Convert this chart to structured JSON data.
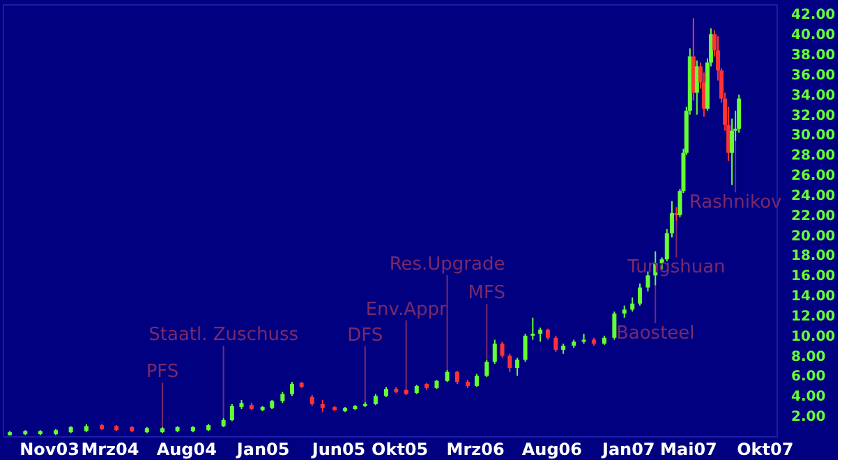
{
  "chart_data": {
    "type": "candlestick",
    "x": [
      "2003-08-15",
      "2003-09-15",
      "2003-10-15",
      "2003-11-15",
      "2003-12-15",
      "2004-01-15",
      "2004-02-15",
      "2004-03-15",
      "2004-04-15",
      "2004-05-15",
      "2004-06-15",
      "2004-07-15",
      "2004-08-15",
      "2004-09-15",
      "2004-10-15",
      "2004-11-01",
      "2004-11-20",
      "2004-12-10",
      "2005-01-01",
      "2005-01-20",
      "2005-02-10",
      "2005-03-01",
      "2005-03-20",
      "2005-04-10",
      "2005-05-01",
      "2005-05-25",
      "2005-06-15",
      "2005-07-05",
      "2005-07-25",
      "2005-08-15",
      "2005-09-05",
      "2005-09-25",
      "2005-10-15",
      "2005-11-05",
      "2005-11-25",
      "2005-12-15",
      "2006-01-05",
      "2006-01-25",
      "2006-02-15",
      "2006-03-05",
      "2006-03-25",
      "2006-04-10",
      "2006-04-25",
      "2006-05-10",
      "2006-05-25",
      "2006-06-10",
      "2006-06-25",
      "2006-07-10",
      "2006-07-25",
      "2006-08-10",
      "2006-08-25",
      "2006-09-15",
      "2006-10-05",
      "2006-10-25",
      "2006-11-15",
      "2006-12-05",
      "2006-12-25",
      "2007-01-10",
      "2007-01-25",
      "2007-02-10",
      "2007-02-25",
      "2007-03-10",
      "2007-03-20",
      "2007-03-30",
      "2007-04-08",
      "2007-04-15",
      "2007-04-22",
      "2007-04-28",
      "2007-05-05",
      "2007-05-12",
      "2007-05-19",
      "2007-05-26",
      "2007-06-02",
      "2007-06-09",
      "2007-06-16",
      "2007-06-23",
      "2007-06-30",
      "2007-07-07",
      "2007-07-14",
      "2007-07-21",
      "2007-07-28",
      "2007-08-04",
      "2007-08-11"
    ],
    "ohlc": [
      [
        0.1,
        0.5,
        0.05,
        0.4
      ],
      [
        0.2,
        0.6,
        0.1,
        0.5
      ],
      [
        0.2,
        0.6,
        0.1,
        0.5
      ],
      [
        0.2,
        0.7,
        0.1,
        0.6
      ],
      [
        0.4,
        1.0,
        0.3,
        0.9
      ],
      [
        0.5,
        1.2,
        0.4,
        1.0
      ],
      [
        1.1,
        1.2,
        0.6,
        0.7
      ],
      [
        1.0,
        1.1,
        0.5,
        0.6
      ],
      [
        0.9,
        1.0,
        0.4,
        0.5
      ],
      [
        0.4,
        0.9,
        0.3,
        0.8
      ],
      [
        0.4,
        0.9,
        0.3,
        0.8
      ],
      [
        0.5,
        1.0,
        0.4,
        0.9
      ],
      [
        0.5,
        1.0,
        0.4,
        0.9
      ],
      [
        0.6,
        1.2,
        0.5,
        1.1
      ],
      [
        1.0,
        1.8,
        0.9,
        1.6
      ],
      [
        1.6,
        3.2,
        1.5,
        3.0
      ],
      [
        2.9,
        3.6,
        2.7,
        3.3
      ],
      [
        3.1,
        3.3,
        2.6,
        2.7
      ],
      [
        2.6,
        3.0,
        2.5,
        2.9
      ],
      [
        2.8,
        3.6,
        2.7,
        3.5
      ],
      [
        3.5,
        4.4,
        3.3,
        4.2
      ],
      [
        4.2,
        5.4,
        4.0,
        5.2
      ],
      [
        5.3,
        5.4,
        4.8,
        4.9
      ],
      [
        3.9,
        4.1,
        3.0,
        3.2
      ],
      [
        3.2,
        3.6,
        2.4,
        2.8
      ],
      [
        2.9,
        3.0,
        2.5,
        2.6
      ],
      [
        2.5,
        2.9,
        2.4,
        2.8
      ],
      [
        2.7,
        3.1,
        2.6,
        3.0
      ],
      [
        3.0,
        3.4,
        2.9,
        3.2
      ],
      [
        3.2,
        4.2,
        3.1,
        4.0
      ],
      [
        4.0,
        4.9,
        3.9,
        4.7
      ],
      [
        4.7,
        4.9,
        4.3,
        4.4
      ],
      [
        4.6,
        4.7,
        4.1,
        4.2
      ],
      [
        4.3,
        5.1,
        4.2,
        5.0
      ],
      [
        5.2,
        5.3,
        4.6,
        4.8
      ],
      [
        4.8,
        5.6,
        4.7,
        5.5
      ],
      [
        5.5,
        6.6,
        5.4,
        6.4
      ],
      [
        6.4,
        6.5,
        5.2,
        5.4
      ],
      [
        5.4,
        5.6,
        4.8,
        5.0
      ],
      [
        5.0,
        6.2,
        4.9,
        6.0
      ],
      [
        6.0,
        7.6,
        5.9,
        7.4
      ],
      [
        7.4,
        9.6,
        7.2,
        9.2
      ],
      [
        9.2,
        9.4,
        7.8,
        8.0
      ],
      [
        8.0,
        8.2,
        6.4,
        6.8
      ],
      [
        6.8,
        7.8,
        6.0,
        7.6
      ],
      [
        7.6,
        10.2,
        7.4,
        10.0
      ],
      [
        10.0,
        11.8,
        9.6,
        10.2
      ],
      [
        10.2,
        10.8,
        9.4,
        10.6
      ],
      [
        10.6,
        10.7,
        9.6,
        9.8
      ],
      [
        9.8,
        10.0,
        8.4,
        8.6
      ],
      [
        8.6,
        9.2,
        8.2,
        9.0
      ],
      [
        9.0,
        9.6,
        8.8,
        9.4
      ],
      [
        9.4,
        10.2,
        9.2,
        9.6
      ],
      [
        9.6,
        9.8,
        9.0,
        9.2
      ],
      [
        9.2,
        10.0,
        9.1,
        9.8
      ],
      [
        9.8,
        12.4,
        9.6,
        12.2
      ],
      [
        12.2,
        13.0,
        11.8,
        12.6
      ],
      [
        12.6,
        13.8,
        12.4,
        13.2
      ],
      [
        13.2,
        15.2,
        13.0,
        14.8
      ],
      [
        14.8,
        16.4,
        14.4,
        16.0
      ],
      [
        16.0,
        18.4,
        15.0,
        17.2
      ],
      [
        17.2,
        17.8,
        16.6,
        17.6
      ],
      [
        17.6,
        20.6,
        17.4,
        20.2
      ],
      [
        20.2,
        23.4,
        19.8,
        22.2
      ],
      [
        22.2,
        22.8,
        21.4,
        22.0
      ],
      [
        22.0,
        24.6,
        21.8,
        24.4
      ],
      [
        24.4,
        28.6,
        24.2,
        28.2
      ],
      [
        28.2,
        32.8,
        28.0,
        32.4
      ],
      [
        32.4,
        38.6,
        32.0,
        37.8
      ],
      [
        37.8,
        41.6,
        33.4,
        34.2
      ],
      [
        34.2,
        37.4,
        32.0,
        36.8
      ],
      [
        36.8,
        37.2,
        34.6,
        35.2
      ],
      [
        35.2,
        36.2,
        31.8,
        32.6
      ],
      [
        32.6,
        37.6,
        32.4,
        37.2
      ],
      [
        37.2,
        40.6,
        36.8,
        40.0
      ],
      [
        40.0,
        40.4,
        37.8,
        38.4
      ],
      [
        38.4,
        39.8,
        35.4,
        36.4
      ],
      [
        36.4,
        36.6,
        33.2,
        33.6
      ],
      [
        33.6,
        34.2,
        30.4,
        31.0
      ],
      [
        31.0,
        32.8,
        27.4,
        28.2
      ],
      [
        28.2,
        31.6,
        25.0,
        30.4
      ],
      [
        30.4,
        32.4,
        29.4,
        30.6
      ],
      [
        30.6,
        34.0,
        30.2,
        33.6
      ]
    ],
    "colors": [
      "#66ff33",
      "#66ff33",
      "#66ff33",
      "#66ff33",
      "#66ff33",
      "#66ff33",
      "#ff3333",
      "#ff3333",
      "#ff3333",
      "#66ff33",
      "#66ff33",
      "#66ff33",
      "#66ff33",
      "#66ff33",
      "#66ff33",
      "#66ff33",
      "#66ff33",
      "#ff3333",
      "#66ff33",
      "#66ff33",
      "#66ff33",
      "#66ff33",
      "#ff3333",
      "#ff3333",
      "#ff3333",
      "#ff3333",
      "#66ff33",
      "#66ff33",
      "#66ff33",
      "#66ff33",
      "#66ff33",
      "#ff3333",
      "#ff3333",
      "#66ff33",
      "#ff3333",
      "#66ff33",
      "#66ff33",
      "#ff3333",
      "#ff3333",
      "#66ff33",
      "#66ff33",
      "#66ff33",
      "#ff3333",
      "#ff3333",
      "#66ff33",
      "#66ff33",
      "#66ff33",
      "#66ff33",
      "#ff3333",
      "#ff3333",
      "#66ff33",
      "#66ff33",
      "#66ff33",
      "#ff3333",
      "#66ff33",
      "#66ff33",
      "#66ff33",
      "#66ff33",
      "#66ff33",
      "#66ff33",
      "#66ff33",
      "#66ff33",
      "#66ff33",
      "#66ff33",
      "#ff3333",
      "#66ff33",
      "#66ff33",
      "#66ff33",
      "#66ff33",
      "#ff3333",
      "#66ff33",
      "#ff3333",
      "#ff3333",
      "#66ff33",
      "#66ff33",
      "#ff3333",
      "#ff3333",
      "#ff3333",
      "#ff3333",
      "#ff3333",
      "#66ff33",
      "#66ff33",
      "#66ff33"
    ],
    "xlim": [
      "2003-08-01",
      "2007-10-25"
    ],
    "xticks": [
      {
        "value": "2003-11-01",
        "label": "Nov03"
      },
      {
        "value": "2004-03-01",
        "label": "Mrz04"
      },
      {
        "value": "2004-08-01",
        "label": "Aug04"
      },
      {
        "value": "2005-01-01",
        "label": "Jan05"
      },
      {
        "value": "2005-06-01",
        "label": "Jun05"
      },
      {
        "value": "2005-10-01",
        "label": "Okt05"
      },
      {
        "value": "2006-03-01",
        "label": "Mrz06"
      },
      {
        "value": "2006-08-01",
        "label": "Aug06"
      },
      {
        "value": "2007-01-01",
        "label": "Jan07"
      },
      {
        "value": "2007-05-01",
        "label": "Mai07"
      },
      {
        "value": "2007-10-01",
        "label": "Okt07"
      }
    ],
    "ylim": [
      0,
      43
    ],
    "yticks": [
      {
        "value": 2,
        "label": "2.00"
      },
      {
        "value": 4,
        "label": "4.00"
      },
      {
        "value": 6,
        "label": "6.00"
      },
      {
        "value": 8,
        "label": "8.00"
      },
      {
        "value": 10,
        "label": "10.00"
      },
      {
        "value": 12,
        "label": "12.00"
      },
      {
        "value": 14,
        "label": "14.00"
      },
      {
        "value": 16,
        "label": "16.00"
      },
      {
        "value": 18,
        "label": "18.00"
      },
      {
        "value": 20,
        "label": "20.00"
      },
      {
        "value": 22,
        "label": "22.00"
      },
      {
        "value": 24,
        "label": "24.00"
      },
      {
        "value": 26,
        "label": "26.00"
      },
      {
        "value": 28,
        "label": "28.00"
      },
      {
        "value": 30,
        "label": "30.00"
      },
      {
        "value": 32,
        "label": "32.00"
      },
      {
        "value": 34,
        "label": "34.00"
      },
      {
        "value": 36,
        "label": "36.00"
      },
      {
        "value": 38,
        "label": "38.00"
      },
      {
        "value": 40,
        "label": "40.00"
      },
      {
        "value": 42,
        "label": "42.00"
      }
    ],
    "grid": false,
    "annotations": [
      {
        "text": "PFS",
        "x": "2004-06-15",
        "y": 0.9
      },
      {
        "text": "Staatl. Zuschuss",
        "x": "2004-10-15",
        "y": 1.8
      },
      {
        "text": "DFS",
        "x": "2005-07-25",
        "y": 3.4
      },
      {
        "text": "Env.Appr",
        "x": "2005-10-15",
        "y": 4.6
      },
      {
        "text": "Res.Upgrade",
        "x": "2006-01-05",
        "y": 6.6
      },
      {
        "text": "MFS",
        "x": "2006-03-25",
        "y": 7.6
      },
      {
        "text": "Baosteel",
        "x": "2007-02-25",
        "y": 15.0
      },
      {
        "text": "Tungshuan",
        "x": "2007-04-08",
        "y": 21.4
      },
      {
        "text": "Rashnikov",
        "x": "2007-08-04",
        "y": 29.4
      }
    ]
  }
}
